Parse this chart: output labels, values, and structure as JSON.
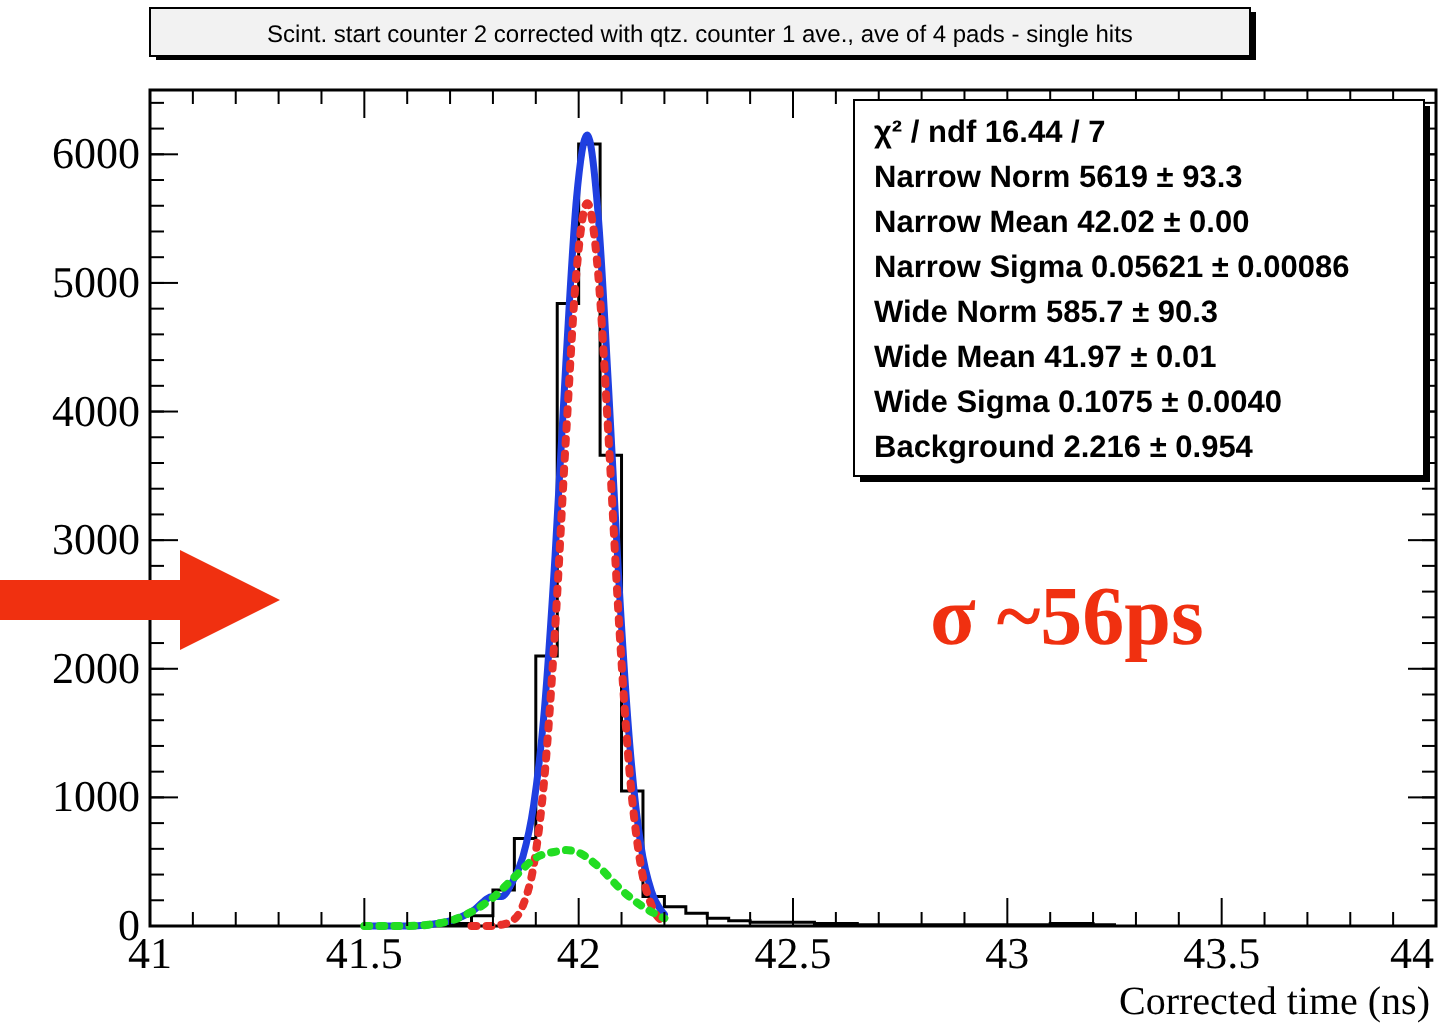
{
  "chart_data": {
    "type": "histogram",
    "title": "Scint. start counter 2 corrected with qtz. counter 1 ave., ave of 4 pads - single hits",
    "xlabel": "Corrected time (ns)",
    "bins": [
      41.55,
      41.6,
      41.65,
      41.7,
      41.75,
      41.8,
      41.85,
      41.9,
      41.95,
      42.0,
      42.05,
      42.1,
      42.15,
      42.2,
      42.25,
      42.3,
      42.35,
      42.4,
      42.45,
      42.5,
      42.55,
      42.6,
      42.65,
      42.7,
      42.75,
      42.8,
      42.85,
      42.9,
      42.95,
      43.0,
      43.05,
      43.1,
      43.15,
      43.2,
      43.25
    ],
    "values": [
      0,
      0,
      10,
      20,
      80,
      280,
      680,
      2100,
      4840,
      6080,
      3660,
      1050,
      230,
      150,
      100,
      60,
      40,
      30,
      30,
      30,
      20,
      20,
      10,
      10,
      10,
      10,
      10,
      10,
      10,
      10,
      10,
      20,
      20,
      10
    ],
    "color": "#000000",
    "series": [
      {
        "type": "line",
        "color": "#1f3fe0",
        "line_style": "solid",
        "x": [
          41.5,
          41.55,
          41.6,
          41.65,
          41.7,
          41.75,
          41.8,
          41.82,
          41.845,
          41.87,
          41.895,
          41.92,
          41.945,
          41.97,
          41.995,
          42.02,
          42.045,
          42.07,
          42.095,
          42.12,
          42.145,
          42.17,
          42.195,
          42.2
        ],
        "values": [
          0,
          0,
          0,
          10,
          40,
          110,
          230,
          230,
          340,
          540,
          940,
          1680,
          2880,
          4370,
          5660,
          6150,
          5550,
          4170,
          2610,
          1380,
          630,
          270,
          110,
          90
        ]
      },
      {
        "type": "line",
        "color": "#e8302a",
        "line_style": "dotted",
        "x": [
          41.75,
          41.8,
          41.82,
          41.845,
          41.87,
          41.895,
          41.92,
          41.945,
          41.97,
          41.995,
          42.02,
          42.045,
          42.07,
          42.095,
          42.12,
          42.145,
          42.17,
          42.195,
          42.2
        ],
        "values": [
          0,
          0,
          10,
          40,
          160,
          470,
          1150,
          2310,
          3780,
          5090,
          5620,
          5090,
          3780,
          2310,
          1150,
          470,
          160,
          40,
          30
        ]
      },
      {
        "type": "line",
        "color": "#22dd22",
        "line_style": "dotted",
        "x": [
          41.5,
          41.55,
          41.6,
          41.65,
          41.7,
          41.75,
          41.8,
          41.85,
          41.9,
          41.95,
          41.97,
          42.0,
          42.05,
          42.1,
          42.15,
          42.2
        ],
        "values": [
          0,
          0,
          0,
          10,
          40,
          110,
          220,
          380,
          530,
          580,
          590,
          570,
          450,
          280,
          150,
          60
        ]
      }
    ],
    "xlim": [
      41,
      44
    ],
    "xticks": [
      41,
      41.5,
      42,
      42.5,
      43,
      43.5,
      44
    ],
    "ylim": [
      0,
      6500
    ],
    "yticks": [
      0,
      1000,
      2000,
      3000,
      4000,
      5000,
      6000
    ],
    "grid": false,
    "annotations": [
      "χ² / ndf 16.44 / 7",
      "Narrow Norm 5619 ± 93.3",
      "Narrow Mean 42.02 ± 0.00",
      "Narrow Sigma 0.05621 ± 0.00086",
      "Wide Norm 585.7 ± 90.3",
      "Wide Mean 41.97 ± 0.01",
      "Wide Sigma 0.1075 ± 0.0040",
      "Background 2.216 ± 0.954",
      {
        "text": "σ ~56ps"
      }
    ]
  }
}
